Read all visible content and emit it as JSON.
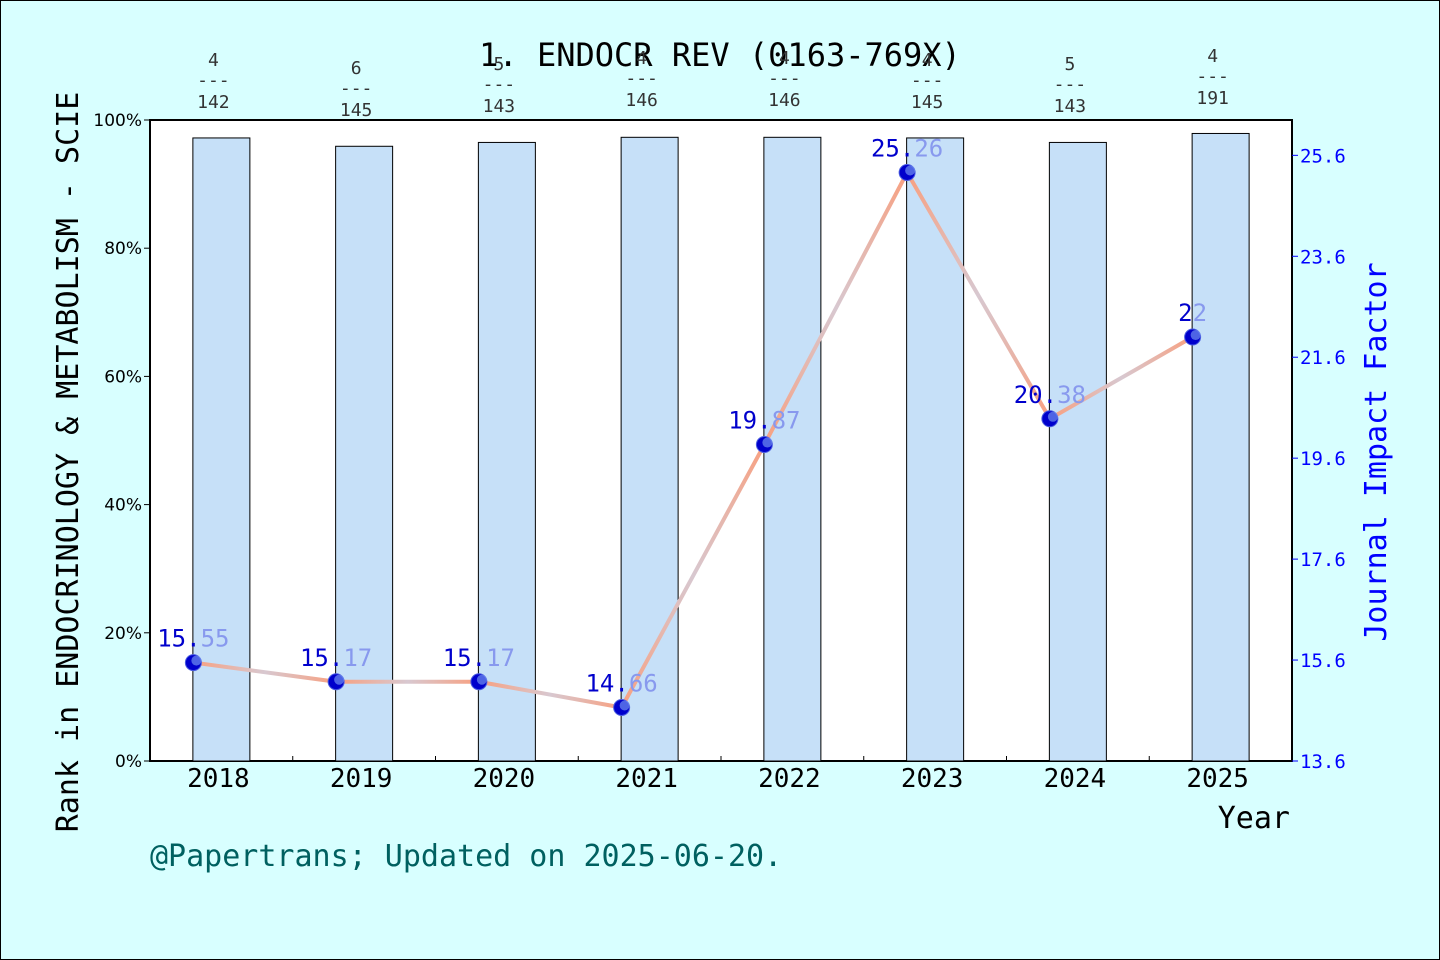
{
  "chart_data": {
    "type": "bar",
    "title": "1. ENDOCR REV (0163-769X)",
    "xlabel": "Year",
    "ylabel_left": "Rank in ENDOCRINOLOGY & METABOLISM - SCIE",
    "ylabel_right": "Journal Impact Factor",
    "footer": "@Papertrans; Updated on 2025-06-20.",
    "categories": [
      "2018",
      "2019",
      "2020",
      "2021",
      "2022",
      "2023",
      "2024",
      "2025"
    ],
    "left_axis": {
      "ylim": [
        0,
        100
      ],
      "ticks": [
        "0%",
        "20%",
        "40%",
        "60%",
        "80%",
        "100%"
      ]
    },
    "right_axis": {
      "ylim": [
        13.6,
        26.3
      ],
      "ticks": [
        "13.6",
        "15.6",
        "17.6",
        "19.6",
        "21.6",
        "23.6",
        "25.6"
      ]
    },
    "bars": {
      "name": "Rank percentile",
      "values": [
        97.2,
        95.9,
        96.5,
        97.3,
        97.3,
        97.2,
        96.5,
        97.9
      ],
      "rank_labels": [
        {
          "rank": "4",
          "sep": "---",
          "total": "142"
        },
        {
          "rank": "6",
          "sep": "---",
          "total": "145"
        },
        {
          "rank": "5",
          "sep": "---",
          "total": "143"
        },
        {
          "rank": "4",
          "sep": "---",
          "total": "146"
        },
        {
          "rank": "4",
          "sep": "---",
          "total": "146"
        },
        {
          "rank": "4",
          "sep": "---",
          "total": "145"
        },
        {
          "rank": "5",
          "sep": "---",
          "total": "143"
        },
        {
          "rank": "4",
          "sep": "---",
          "total": "191"
        }
      ],
      "color": "#c6e0f8"
    },
    "line": {
      "name": "Journal Impact Factor",
      "values": [
        15.55,
        15.17,
        15.17,
        14.66,
        19.87,
        25.26,
        20.38,
        22
      ],
      "labels": [
        "15.55",
        "15.17",
        "15.17",
        "14.66",
        "19.87",
        "25.26",
        "20.38",
        "22"
      ],
      "color": "#f8a080",
      "marker_color": "#0000cc"
    },
    "colors": {
      "background": "#d8ffff",
      "plot_background": "#ffffff",
      "axis_right": "#0000ff",
      "footer": "#006060"
    }
  }
}
